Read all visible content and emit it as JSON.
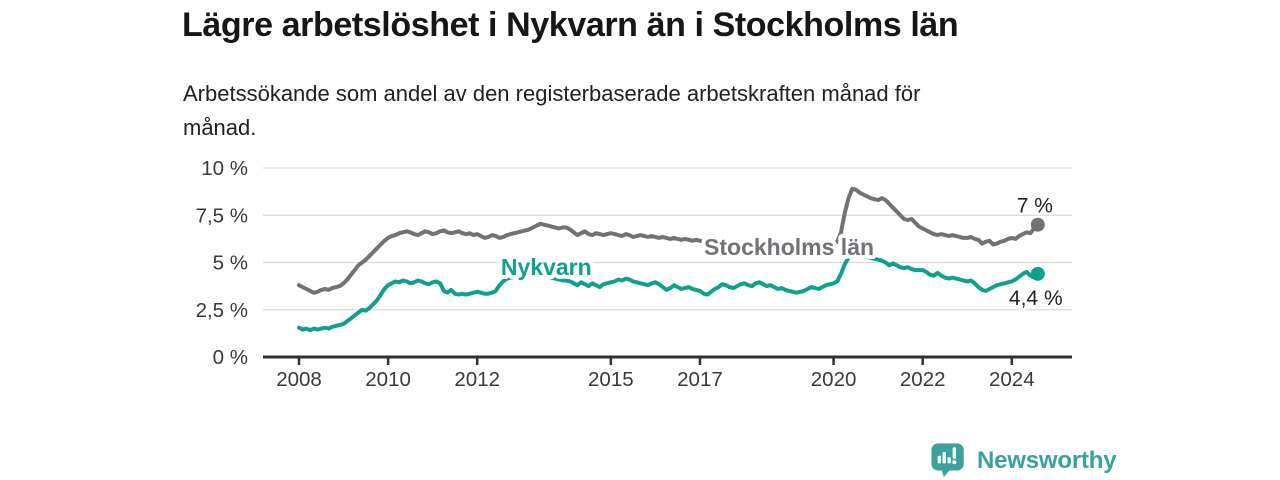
{
  "header": {
    "title": "Lägre arbetslöshet i Nykvarn än i Stockholms län",
    "subtitle_lines": [
      "Arbetssökande som andel av den registerbaserade arbetskraften månad för",
      "månad."
    ]
  },
  "footer": {
    "brand": "Newsworthy",
    "brand_color": "#3ba29b",
    "logo_icon": "bar-chart-speech-bubble"
  },
  "chart_data": {
    "type": "line",
    "title": "Lägre arbetslöshet i Nykvarn än i Stockholms län",
    "subtitle": "Arbetssökande som andel av den registerbaserade arbetskraften månad för månad.",
    "unit": "%",
    "x_unit": "month",
    "x_range": [
      "2008-01",
      "2024-08"
    ],
    "ylim": [
      0,
      10
    ],
    "grid": "horizontal",
    "legend": "inline-labels",
    "x_ticks": [
      2008,
      2010,
      2012,
      2015,
      2017,
      2020,
      2022,
      2024
    ],
    "y_ticks": {
      "values": [
        0,
        2.5,
        5,
        7.5,
        10
      ],
      "labels": [
        "0 %",
        "2,5 %",
        "5 %",
        "7,5 %",
        "10 %"
      ]
    },
    "series": [
      {
        "key": "nykvarn",
        "name": "Nykvarn",
        "color": "#10a18c",
        "end_label": "4,4 %",
        "end_value": 4.4,
        "label_pos": {
          "year": 2013.55,
          "value": 4.75
        },
        "values": [
          1.55,
          1.45,
          1.5,
          1.42,
          1.5,
          1.45,
          1.5,
          1.55,
          1.5,
          1.6,
          1.65,
          1.7,
          1.75,
          1.9,
          2.05,
          2.2,
          2.35,
          2.5,
          2.45,
          2.6,
          2.8,
          3.0,
          3.3,
          3.6,
          3.8,
          3.9,
          4.0,
          3.95,
          4.05,
          4.0,
          3.9,
          3.95,
          4.05,
          4.0,
          3.9,
          3.85,
          3.95,
          4.0,
          3.9,
          3.5,
          3.4,
          3.55,
          3.35,
          3.3,
          3.35,
          3.3,
          3.35,
          3.4,
          3.45,
          3.4,
          3.35,
          3.35,
          3.4,
          3.5,
          3.8,
          4.0,
          4.15,
          4.2,
          4.25,
          4.3,
          4.3,
          4.35,
          4.4,
          4.45,
          4.4,
          4.35,
          4.3,
          4.25,
          4.2,
          4.15,
          4.1,
          4.05,
          4.05,
          4.0,
          3.9,
          3.8,
          3.95,
          3.85,
          3.75,
          3.9,
          3.8,
          3.7,
          3.85,
          3.9,
          3.95,
          4.0,
          4.1,
          4.05,
          4.15,
          4.1,
          4.0,
          3.95,
          3.9,
          3.85,
          3.8,
          3.9,
          3.95,
          3.85,
          3.7,
          3.55,
          3.65,
          3.8,
          3.7,
          3.6,
          3.65,
          3.7,
          3.6,
          3.55,
          3.5,
          3.35,
          3.3,
          3.45,
          3.6,
          3.7,
          3.85,
          3.8,
          3.7,
          3.65,
          3.75,
          3.85,
          3.9,
          3.8,
          3.75,
          3.9,
          3.95,
          3.85,
          3.75,
          3.8,
          3.7,
          3.6,
          3.65,
          3.55,
          3.5,
          3.45,
          3.4,
          3.45,
          3.5,
          3.6,
          3.7,
          3.65,
          3.6,
          3.7,
          3.8,
          3.85,
          3.9,
          4.0,
          4.4,
          4.9,
          5.25,
          5.45,
          5.4,
          5.35,
          5.3,
          5.3,
          5.25,
          5.2,
          5.15,
          5.1,
          5.0,
          4.85,
          4.95,
          4.85,
          4.75,
          4.7,
          4.75,
          4.65,
          4.6,
          4.6,
          4.6,
          4.5,
          4.35,
          4.3,
          4.45,
          4.3,
          4.2,
          4.15,
          4.2,
          4.15,
          4.1,
          4.05,
          4.0,
          4.05,
          3.9,
          3.7,
          3.55,
          3.5,
          3.6,
          3.7,
          3.8,
          3.85,
          3.9,
          3.95,
          4.0,
          4.1,
          4.25,
          4.4,
          4.5,
          4.3,
          4.2,
          4.4
        ]
      },
      {
        "key": "stockholms-lan",
        "name": "Stockholms län",
        "color": "#717176",
        "end_label": "7 %",
        "end_value": 7.0,
        "label_pos": {
          "year": 2019.0,
          "value": 5.82
        },
        "values": [
          3.8,
          3.7,
          3.6,
          3.5,
          3.4,
          3.45,
          3.55,
          3.6,
          3.55,
          3.65,
          3.7,
          3.75,
          3.9,
          4.1,
          4.35,
          4.6,
          4.85,
          5.0,
          5.15,
          5.35,
          5.55,
          5.75,
          5.95,
          6.15,
          6.3,
          6.4,
          6.45,
          6.55,
          6.6,
          6.65,
          6.6,
          6.5,
          6.45,
          6.55,
          6.65,
          6.6,
          6.5,
          6.55,
          6.65,
          6.7,
          6.6,
          6.55,
          6.6,
          6.65,
          6.55,
          6.5,
          6.55,
          6.45,
          6.5,
          6.4,
          6.3,
          6.35,
          6.45,
          6.4,
          6.3,
          6.35,
          6.45,
          6.5,
          6.55,
          6.6,
          6.65,
          6.7,
          6.75,
          6.85,
          6.95,
          7.05,
          7.0,
          6.95,
          6.9,
          6.85,
          6.8,
          6.85,
          6.85,
          6.75,
          6.6,
          6.45,
          6.55,
          6.65,
          6.5,
          6.45,
          6.55,
          6.5,
          6.45,
          6.5,
          6.55,
          6.5,
          6.45,
          6.4,
          6.5,
          6.45,
          6.35,
          6.4,
          6.45,
          6.4,
          6.35,
          6.4,
          6.35,
          6.3,
          6.35,
          6.3,
          6.25,
          6.3,
          6.25,
          6.2,
          6.25,
          6.2,
          6.15,
          6.2,
          6.15,
          6.1,
          6.15,
          6.1,
          6.05,
          6.1,
          6.05,
          6.0,
          6.05,
          6.0,
          5.95,
          6.0,
          5.95,
          5.9,
          5.95,
          5.9,
          5.85,
          5.9,
          5.85,
          5.9,
          5.85,
          5.8,
          5.85,
          5.8,
          5.85,
          5.8,
          5.85,
          5.8,
          5.75,
          5.8,
          5.85,
          5.8,
          5.85,
          5.9,
          5.9,
          5.95,
          6.0,
          6.1,
          6.6,
          7.6,
          8.4,
          8.9,
          8.85,
          8.7,
          8.6,
          8.5,
          8.4,
          8.35,
          8.3,
          8.4,
          8.3,
          8.1,
          7.9,
          7.7,
          7.5,
          7.3,
          7.25,
          7.3,
          7.1,
          6.9,
          6.8,
          6.7,
          6.6,
          6.5,
          6.45,
          6.5,
          6.45,
          6.4,
          6.45,
          6.4,
          6.35,
          6.3,
          6.3,
          6.35,
          6.25,
          6.2,
          6.0,
          6.1,
          6.15,
          5.95,
          6.0,
          6.1,
          6.15,
          6.25,
          6.3,
          6.25,
          6.4,
          6.5,
          6.6,
          6.55,
          6.8,
          7.0
        ]
      }
    ]
  }
}
